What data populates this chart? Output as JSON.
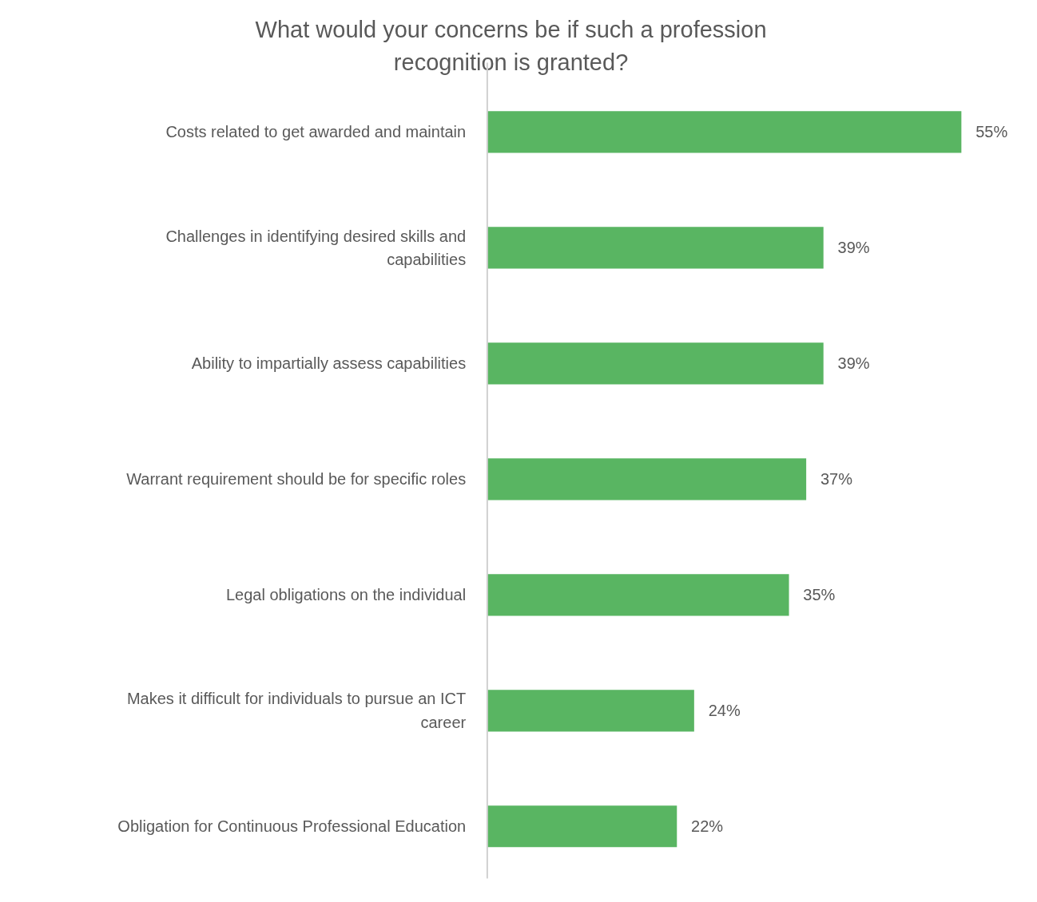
{
  "chart_data": {
    "type": "bar",
    "orientation": "horizontal",
    "title": "What would your concerns be if such a profession recognition is granted?",
    "categories": [
      "Costs related to get awarded and maintain",
      "Challenges in identifying desired skills and capabilities",
      "Ability to impartially assess capabilities",
      "Warrant requirement should be for specific roles",
      "Legal obligations on the individual",
      "Makes it difficult for individuals to pursue an ICT career",
      "Obligation for Continuous Professional Education"
    ],
    "values": [
      55,
      39,
      39,
      37,
      35,
      24,
      22
    ],
    "value_labels": [
      "55%",
      "39%",
      "39%",
      "37%",
      "35%",
      "24%",
      "22%"
    ],
    "color": "#59b562",
    "grid": false
  }
}
